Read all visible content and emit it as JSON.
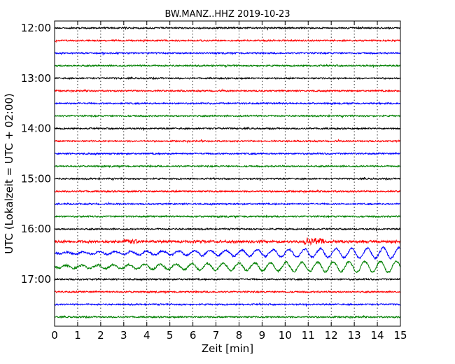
{
  "chart_data": {
    "type": "line",
    "title": "BW.MANZ..HHZ 2019-10-23",
    "xlabel": "Zeit  [min]",
    "ylabel": "UTC (Lokalzeit = UTC + 02:00)",
    "xlim": [
      0,
      15
    ],
    "x_ticks": [
      "0",
      "1",
      "2",
      "3",
      "4",
      "5",
      "6",
      "7",
      "8",
      "9",
      "10",
      "11",
      "12",
      "13",
      "14",
      "15"
    ],
    "y_tick_labels": [
      "12:00",
      "13:00",
      "14:00",
      "15:00",
      "16:00",
      "17:00"
    ],
    "grid": "vertical dotted",
    "trace_interval_minutes": 15,
    "color_cycle": [
      "#000000",
      "#ff0000",
      "#0000ff",
      "#008000"
    ],
    "series": [
      {
        "start": "12:00",
        "color": "#000000",
        "activity": "low"
      },
      {
        "start": "12:15",
        "color": "#ff0000",
        "activity": "low"
      },
      {
        "start": "12:30",
        "color": "#0000ff",
        "activity": "low"
      },
      {
        "start": "12:45",
        "color": "#008000",
        "activity": "low"
      },
      {
        "start": "13:00",
        "color": "#000000",
        "activity": "low"
      },
      {
        "start": "13:15",
        "color": "#ff0000",
        "activity": "low"
      },
      {
        "start": "13:30",
        "color": "#0000ff",
        "activity": "low"
      },
      {
        "start": "13:45",
        "color": "#008000",
        "activity": "low"
      },
      {
        "start": "14:00",
        "color": "#000000",
        "activity": "low"
      },
      {
        "start": "14:15",
        "color": "#ff0000",
        "activity": "low"
      },
      {
        "start": "14:30",
        "color": "#0000ff",
        "activity": "low"
      },
      {
        "start": "14:45",
        "color": "#008000",
        "activity": "low"
      },
      {
        "start": "15:00",
        "color": "#000000",
        "activity": "low"
      },
      {
        "start": "15:15",
        "color": "#ff0000",
        "activity": "low"
      },
      {
        "start": "15:30",
        "color": "#0000ff",
        "activity": "low"
      },
      {
        "start": "15:45",
        "color": "#008000",
        "activity": "low"
      },
      {
        "start": "16:00",
        "color": "#000000",
        "activity": "low"
      },
      {
        "start": "16:15",
        "color": "#ff0000",
        "activity": "moderate"
      },
      {
        "start": "16:30",
        "color": "#0000ff",
        "activity": "high"
      },
      {
        "start": "16:45",
        "color": "#008000",
        "activity": "high"
      },
      {
        "start": "17:00",
        "color": "#000000",
        "activity": "low"
      },
      {
        "start": "17:15",
        "color": "#ff0000",
        "activity": "low"
      },
      {
        "start": "17:30",
        "color": "#0000ff",
        "activity": "low"
      },
      {
        "start": "17:45",
        "color": "#008000",
        "activity": "low"
      }
    ]
  }
}
